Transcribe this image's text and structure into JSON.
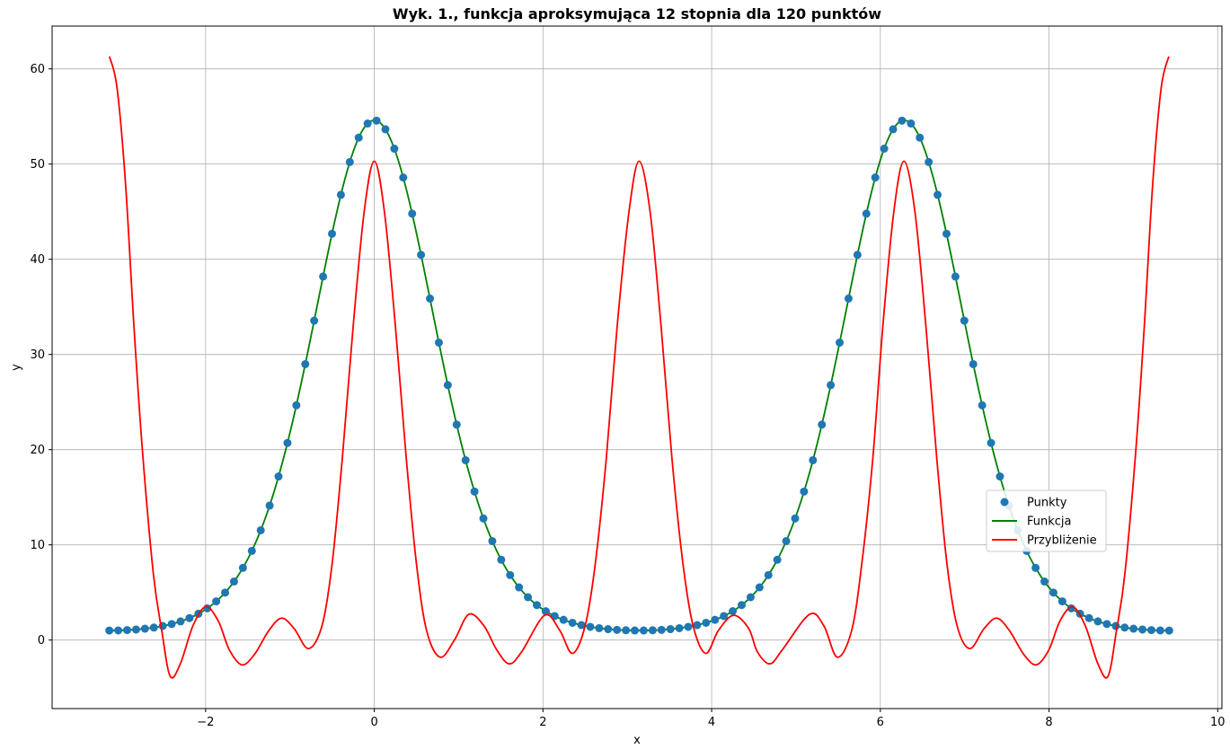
{
  "chart_data": {
    "type": "line",
    "title": "Wyk. 1., funkcja aproksymująca 12 stopnia dla 120 punktów",
    "xlabel": "x",
    "ylabel": "y",
    "xlim": [
      -3.82,
      10.05
    ],
    "ylim": [
      -7.2,
      64.5
    ],
    "xticks": [
      -2,
      0,
      2,
      4,
      6,
      8,
      10
    ],
    "xtick_labels": [
      "−2",
      "0",
      "2",
      "4",
      "6",
      "8",
      "10"
    ],
    "yticks": [
      0,
      10,
      20,
      30,
      40,
      50,
      60
    ],
    "ytick_labels": [
      "0",
      "10",
      "20",
      "30",
      "40",
      "50",
      "60"
    ],
    "grid": true,
    "legend_position": "center-right",
    "series": [
      {
        "name": "Punkty",
        "kind": "scatter",
        "color": "#1f77b4",
        "generator": {
          "x_start": -3.14159,
          "x_end": 9.42478,
          "n": 120,
          "function": "54.6*exp(-2*(1-cos(x)))"
        }
      },
      {
        "name": "Funkcja",
        "kind": "line",
        "color": "#008000",
        "generator": {
          "x_start": -3.14159,
          "x_end": 9.42478,
          "function": "54.6*exp(-2*(1-cos(x)))"
        }
      },
      {
        "name": "Przybliżenie",
        "kind": "line",
        "color": "#ff0000",
        "anchor_points": [
          [
            -3.14,
            61.3
          ],
          [
            -3.05,
            58.0
          ],
          [
            -2.95,
            48.0
          ],
          [
            -2.85,
            33.0
          ],
          [
            -2.75,
            20.0
          ],
          [
            -2.62,
            7.0
          ],
          [
            -2.52,
            1.0
          ],
          [
            -2.42,
            -3.8
          ],
          [
            -2.3,
            -2.5
          ],
          [
            -2.15,
            1.5
          ],
          [
            -2.0,
            3.5
          ],
          [
            -1.85,
            2.0
          ],
          [
            -1.72,
            -1.0
          ],
          [
            -1.57,
            -2.6
          ],
          [
            -1.42,
            -1.5
          ],
          [
            -1.25,
            1.0
          ],
          [
            -1.1,
            2.3
          ],
          [
            -0.95,
            1.2
          ],
          [
            -0.78,
            -0.9
          ],
          [
            -0.62,
            1.5
          ],
          [
            -0.5,
            8.0
          ],
          [
            -0.38,
            19.0
          ],
          [
            -0.25,
            33.0
          ],
          [
            -0.12,
            45.0
          ],
          [
            0.0,
            50.3
          ],
          [
            0.12,
            45.0
          ],
          [
            0.25,
            33.0
          ],
          [
            0.38,
            19.0
          ],
          [
            0.5,
            8.0
          ],
          [
            0.62,
            1.0
          ],
          [
            0.78,
            -1.8
          ],
          [
            0.95,
            0.0
          ],
          [
            1.12,
            2.7
          ],
          [
            1.3,
            1.5
          ],
          [
            1.45,
            -1.0
          ],
          [
            1.6,
            -2.5
          ],
          [
            1.75,
            -1.2
          ],
          [
            2.02,
            2.6
          ],
          [
            2.2,
            1.0
          ],
          [
            2.35,
            -1.4
          ],
          [
            2.5,
            1.5
          ],
          [
            2.62,
            8.0
          ],
          [
            2.75,
            19.0
          ],
          [
            2.88,
            33.0
          ],
          [
            3.02,
            45.0
          ],
          [
            3.14,
            50.3
          ],
          [
            3.27,
            45.0
          ],
          [
            3.4,
            33.0
          ],
          [
            3.53,
            19.0
          ],
          [
            3.66,
            8.0
          ],
          [
            3.78,
            1.5
          ],
          [
            3.93,
            -1.4
          ],
          [
            4.08,
            1.0
          ],
          [
            4.26,
            2.6
          ],
          [
            4.44,
            1.2
          ],
          [
            4.54,
            -1.2
          ],
          [
            4.69,
            -2.5
          ],
          [
            4.84,
            -1.0
          ],
          [
            5.16,
            2.7
          ],
          [
            5.33,
            1.5
          ],
          [
            5.49,
            -1.8
          ],
          [
            5.66,
            1.0
          ],
          [
            5.78,
            8.0
          ],
          [
            5.91,
            19.0
          ],
          [
            6.03,
            33.0
          ],
          [
            6.16,
            45.0
          ],
          [
            6.28,
            50.3
          ],
          [
            6.41,
            45.0
          ],
          [
            6.54,
            33.0
          ],
          [
            6.67,
            19.0
          ],
          [
            6.79,
            8.0
          ],
          [
            6.91,
            1.5
          ],
          [
            7.06,
            -0.9
          ],
          [
            7.23,
            1.2
          ],
          [
            7.38,
            2.3
          ],
          [
            7.53,
            1.0
          ],
          [
            7.7,
            -1.5
          ],
          [
            7.85,
            -2.6
          ],
          [
            8.0,
            -1.0
          ],
          [
            8.13,
            2.0
          ],
          [
            8.28,
            3.5
          ],
          [
            8.43,
            1.5
          ],
          [
            8.58,
            -2.5
          ],
          [
            8.7,
            -3.8
          ],
          [
            8.8,
            1.0
          ],
          [
            8.9,
            7.0
          ],
          [
            9.03,
            20.0
          ],
          [
            9.13,
            33.0
          ],
          [
            9.23,
            48.0
          ],
          [
            9.33,
            58.0
          ],
          [
            9.42,
            61.3
          ]
        ]
      }
    ],
    "legend_entries": [
      "Punkty",
      "Funkcja",
      "Przybliżenie"
    ]
  }
}
